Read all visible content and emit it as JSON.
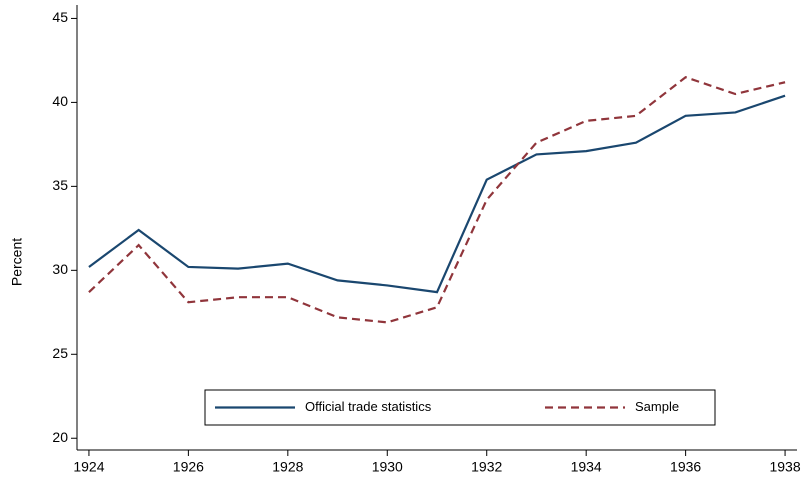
{
  "chart_data": {
    "type": "line",
    "y_label": "Percent",
    "x": [
      1924,
      1925,
      1926,
      1927,
      1928,
      1929,
      1930,
      1931,
      1932,
      1933,
      1934,
      1935,
      1936,
      1937,
      1938
    ],
    "series": [
      {
        "name": "Official trade statistics",
        "color": "#1a476f",
        "dash": "solid",
        "values": [
          30.2,
          32.4,
          30.2,
          30.1,
          30.4,
          29.4,
          29.1,
          28.7,
          35.4,
          36.9,
          37.1,
          37.6,
          39.2,
          39.4,
          40.4
        ]
      },
      {
        "name": "Sample",
        "color": "#90353b",
        "dash": "dashed",
        "values": [
          28.7,
          31.5,
          28.1,
          28.4,
          28.4,
          27.2,
          26.9,
          27.8,
          34.2,
          37.6,
          38.9,
          39.2,
          41.5,
          40.5,
          41.2
        ]
      }
    ],
    "xlim": [
      1923.76,
      1938.24
    ],
    "xticks": [
      1924,
      1926,
      1928,
      1930,
      1932,
      1934,
      1936,
      1938
    ],
    "ylim": [
      19.3,
      45.8
    ],
    "yticks": [
      20,
      25,
      30,
      35,
      40,
      45
    ],
    "grid": false,
    "legend": "bottom"
  }
}
